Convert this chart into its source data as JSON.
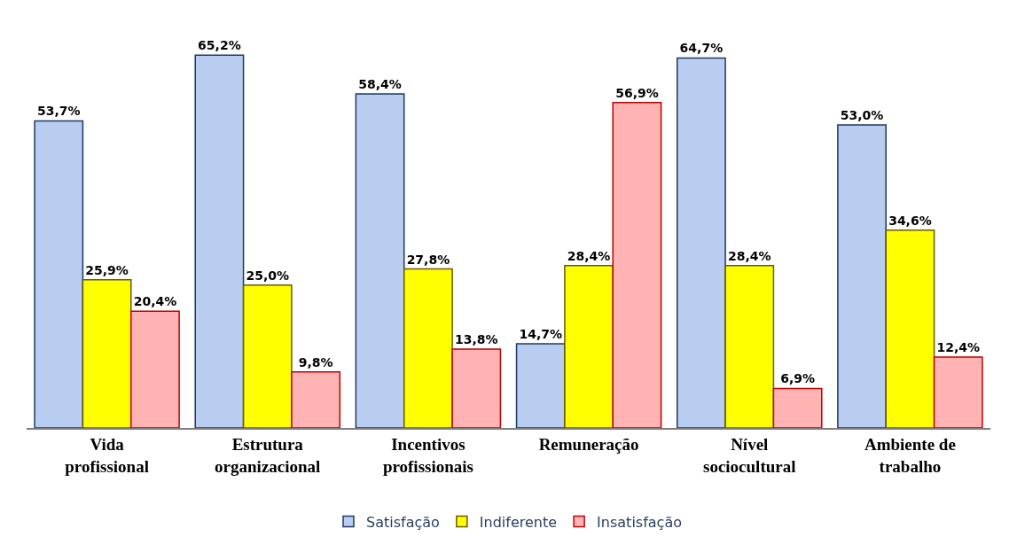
{
  "chart_data": {
    "type": "bar",
    "categories": [
      "Vida\nprofissional",
      "Estrutura\norganizacional",
      "Incentivos\nprofissionais",
      "Remuneração",
      "Nível\nsociocultural",
      "Ambiente de\ntrabalho"
    ],
    "series": [
      {
        "name": "Satisfação",
        "color": "#b9cdf0",
        "values": [
          53.7,
          65.2,
          58.4,
          14.7,
          64.7,
          53.0
        ],
        "value_labels": [
          "53,7%",
          "65,2%",
          "58,4%",
          "14,7%",
          "64,7%",
          "53,0%"
        ]
      },
      {
        "name": "Indiferente",
        "color": "#ffff00",
        "values": [
          25.9,
          25.0,
          27.8,
          28.4,
          28.4,
          34.6
        ],
        "value_labels": [
          "25,9%",
          "25,0%",
          "27,8%",
          "28,4%",
          "28,4%",
          "34,6%"
        ]
      },
      {
        "name": "Insatisfação",
        "color": "#ffb3b3",
        "values": [
          20.4,
          9.8,
          13.8,
          56.9,
          6.9,
          12.4
        ],
        "value_labels": [
          "20,4%",
          "9,8%",
          "13,8%",
          "56,9%",
          "6,9%",
          "12,4%"
        ]
      }
    ],
    "legend": "bottom"
  }
}
